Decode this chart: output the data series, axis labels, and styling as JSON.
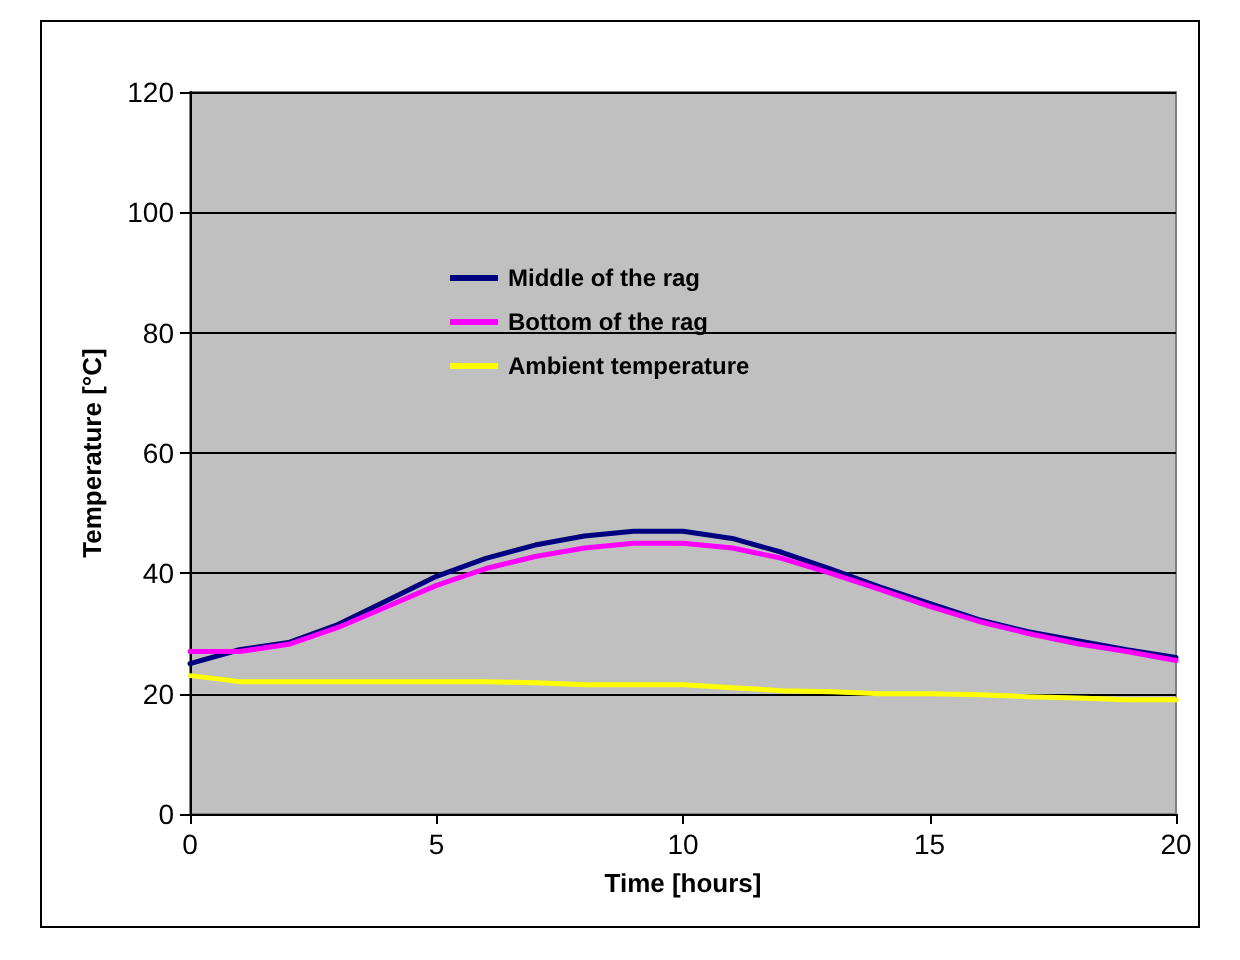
{
  "chart_data": {
    "type": "line",
    "xlabel": "Time [hours]",
    "ylabel": "Temperature [°C]",
    "x": [
      0,
      1,
      2,
      3,
      4,
      5,
      6,
      7,
      8,
      9,
      10,
      11,
      12,
      13,
      14,
      15,
      16,
      17,
      18,
      19,
      20
    ],
    "series": [
      {
        "name": "Middle of the rag",
        "color": "#000080",
        "values": [
          25,
          27.3,
          28.5,
          31.5,
          35.5,
          39.5,
          42.5,
          44.7,
          46.2,
          47,
          47,
          45.8,
          43.5,
          40.7,
          37.7,
          35,
          32.3,
          30.3,
          28.8,
          27.3,
          26
        ]
      },
      {
        "name": "Bottom of the rag",
        "color": "#ff00ff",
        "values": [
          27,
          27,
          28.2,
          31,
          34.5,
          38,
          40.8,
          42.8,
          44.2,
          45,
          45,
          44.2,
          42.5,
          40,
          37.3,
          34.5,
          32,
          30,
          28.3,
          27,
          25.5
        ]
      },
      {
        "name": "Ambient temperature",
        "color": "#ffff00",
        "values": [
          23,
          22,
          22,
          22,
          22,
          22,
          22,
          21.8,
          21.5,
          21.5,
          21.5,
          21,
          20.5,
          20.3,
          20,
          20,
          19.8,
          19.5,
          19.3,
          19,
          19
        ]
      }
    ],
    "xlim": [
      0,
      20
    ],
    "xticks": [
      0,
      5,
      10,
      15,
      20
    ],
    "ylim": [
      0,
      120
    ],
    "yticks": [
      0,
      20,
      40,
      60,
      80,
      100,
      120
    ],
    "grid": "y",
    "legend": "top",
    "marker": "none",
    "line_style": "solid"
  }
}
